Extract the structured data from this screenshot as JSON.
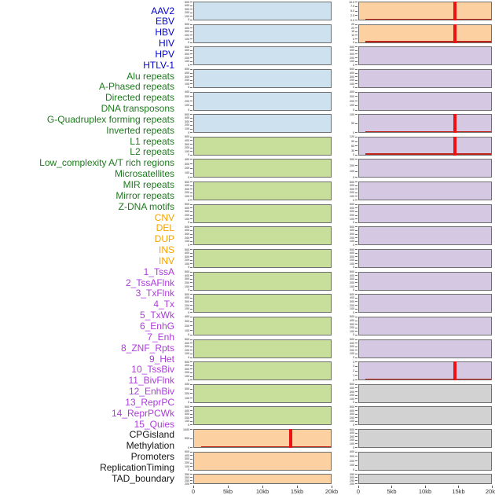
{
  "palette": {
    "label_colors": {
      "virus": "#0000cd",
      "repeat": "#1e7a1e",
      "sv": "#f5a200",
      "chromatin": "#ab3bd9",
      "other": "#141414"
    },
    "fill_colors": {
      "blue": "#cde2ee",
      "green": "#c7df9b",
      "orange": "#fdd0a2",
      "purple": "#d5c8e2",
      "gray": "#d2d2d2"
    },
    "panel_border": "#6e6e6e",
    "marker_red": "#ee1111",
    "baseline_red": "#c0251c",
    "axis_text": "#333333"
  },
  "track_labels": [
    {
      "text": "AAV2",
      "group": "virus"
    },
    {
      "text": "EBV",
      "group": "virus"
    },
    {
      "text": "HBV",
      "group": "virus"
    },
    {
      "text": "HIV",
      "group": "virus"
    },
    {
      "text": "HPV",
      "group": "virus"
    },
    {
      "text": "HTLV-1",
      "group": "virus"
    },
    {
      "text": "Alu repeats",
      "group": "repeat"
    },
    {
      "text": "A-Phased repeats",
      "group": "repeat"
    },
    {
      "text": "Directed repeats",
      "group": "repeat"
    },
    {
      "text": "DNA transposons",
      "group": "repeat"
    },
    {
      "text": "G-Quadruplex forming repeats",
      "group": "repeat"
    },
    {
      "text": "Inverted repeats",
      "group": "repeat"
    },
    {
      "text": "L1 repeats",
      "group": "repeat"
    },
    {
      "text": "L2 repeats",
      "group": "repeat"
    },
    {
      "text": "Low_complexity A/T rich regions",
      "group": "repeat"
    },
    {
      "text": "Microsatellites",
      "group": "repeat"
    },
    {
      "text": "MIR repeats",
      "group": "repeat"
    },
    {
      "text": "Mirror repeats",
      "group": "repeat"
    },
    {
      "text": "Z-DNA motifs",
      "group": "repeat"
    },
    {
      "text": "CNV",
      "group": "sv"
    },
    {
      "text": "DEL",
      "group": "sv"
    },
    {
      "text": "DUP",
      "group": "sv"
    },
    {
      "text": "INS",
      "group": "sv"
    },
    {
      "text": "INV",
      "group": "sv"
    },
    {
      "text": "1_TssA",
      "group": "chromatin"
    },
    {
      "text": "2_TssAFlnk",
      "group": "chromatin"
    },
    {
      "text": "3_TxFlnk",
      "group": "chromatin"
    },
    {
      "text": "4_Tx",
      "group": "chromatin"
    },
    {
      "text": "5_TxWk",
      "group": "chromatin"
    },
    {
      "text": "6_EnhG",
      "group": "chromatin"
    },
    {
      "text": "7_Enh",
      "group": "chromatin"
    },
    {
      "text": "8_ZNF_Rpts",
      "group": "chromatin"
    },
    {
      "text": "9_Het",
      "group": "chromatin"
    },
    {
      "text": "10_TssBiv",
      "group": "chromatin"
    },
    {
      "text": "11_BivFlnk",
      "group": "chromatin"
    },
    {
      "text": "12_EnhBiv",
      "group": "chromatin"
    },
    {
      "text": "13_ReprPC",
      "group": "chromatin"
    },
    {
      "text": "14_ReprPCWk",
      "group": "chromatin"
    },
    {
      "text": "15_Quies",
      "group": "chromatin"
    },
    {
      "text": "CPGisland",
      "group": "other"
    },
    {
      "text": "Methylation",
      "group": "other"
    },
    {
      "text": "Promoters",
      "group": "other"
    },
    {
      "text": "ReplicationTiming",
      "group": "other"
    },
    {
      "text": "TAD_boundary",
      "group": "other"
    }
  ],
  "chart_data": {
    "type": "area",
    "title": "",
    "xlabel": "",
    "x_axis": {
      "ticks": [
        "0",
        "5kb",
        "10kb",
        "15kb",
        "20kb"
      ],
      "range_kb": [
        0,
        20
      ]
    },
    "description": "44 genomic feature tracks in two columns of 22 flat filled mini-panels; red vertical markers at ~14.5kb on highlighted tracks",
    "columns": [
      {
        "name": "left",
        "panels": [
          {
            "track": "AAV2",
            "fill": "blue",
            "yticks": [
              "500",
              "400",
              "300",
              "200",
              "100",
              "0"
            ],
            "marker_frac": null,
            "baseline": false
          },
          {
            "track": "EBV",
            "fill": "blue",
            "yticks": [
              "500",
              "400",
              "300",
              "200",
              "100",
              "0"
            ],
            "marker_frac": null,
            "baseline": false
          },
          {
            "track": "HBV",
            "fill": "blue",
            "yticks": [
              "500",
              "400",
              "300",
              "200",
              "100",
              "0"
            ],
            "marker_frac": null,
            "baseline": false
          },
          {
            "track": "HIV",
            "fill": "blue",
            "yticks": [
              "500",
              "400",
              "300",
              "200",
              "100",
              "0"
            ],
            "marker_frac": null,
            "baseline": false
          },
          {
            "track": "HPV",
            "fill": "blue",
            "yticks": [
              "400",
              "300",
              "200",
              "100",
              "0"
            ],
            "marker_frac": null,
            "baseline": false
          },
          {
            "track": "HTLV-1",
            "fill": "blue",
            "yticks": [
              "500",
              "400",
              "300",
              "200",
              "100",
              "0"
            ],
            "marker_frac": null,
            "baseline": false
          },
          {
            "track": "Alu repeats",
            "fill": "green",
            "yticks": [
              "500",
              "400",
              "300",
              "200",
              "100",
              "0"
            ],
            "marker_frac": null,
            "baseline": false
          },
          {
            "track": "A-Phased repeats",
            "fill": "green",
            "yticks": [
              "400",
              "300",
              "200",
              "100",
              "0"
            ],
            "marker_frac": null,
            "baseline": false
          },
          {
            "track": "Directed repeats",
            "fill": "green",
            "yticks": [
              "500",
              "400",
              "300",
              "200",
              "100",
              "0"
            ],
            "marker_frac": null,
            "baseline": false
          },
          {
            "track": "DNA transposons",
            "fill": "green",
            "yticks": [
              "500",
              "400",
              "300",
              "200",
              "100",
              "0"
            ],
            "marker_frac": null,
            "baseline": false
          },
          {
            "track": "G-Quadruplex forming repeats",
            "fill": "green",
            "yticks": [
              "500",
              "400",
              "300",
              "200",
              "100",
              "0"
            ],
            "marker_frac": null,
            "baseline": false
          },
          {
            "track": "Inverted repeats",
            "fill": "green",
            "yticks": [
              "500",
              "400",
              "300",
              "200",
              "100",
              "0"
            ],
            "marker_frac": null,
            "baseline": false
          },
          {
            "track": "L1 repeats",
            "fill": "green",
            "yticks": [
              "500",
              "400",
              "300",
              "200",
              "100",
              "0"
            ],
            "marker_frac": null,
            "baseline": false
          },
          {
            "track": "L2 repeats",
            "fill": "green",
            "yticks": [
              "500",
              "400",
              "300",
              "200",
              "100",
              "0"
            ],
            "marker_frac": null,
            "baseline": false
          },
          {
            "track": "Low_complexity A/T rich regions",
            "fill": "green",
            "yticks": [
              "400",
              "300",
              "200",
              "100",
              "0"
            ],
            "marker_frac": null,
            "baseline": false
          },
          {
            "track": "Microsatellites",
            "fill": "green",
            "yticks": [
              "500",
              "400",
              "300",
              "200",
              "100",
              "0"
            ],
            "marker_frac": null,
            "baseline": false
          },
          {
            "track": "MIR repeats",
            "fill": "green",
            "yticks": [
              "500",
              "400",
              "300",
              "200",
              "100",
              "0"
            ],
            "marker_frac": null,
            "baseline": false
          },
          {
            "track": "Mirror repeats",
            "fill": "green",
            "yticks": [
              "400",
              "300",
              "200",
              "100",
              "0"
            ],
            "marker_frac": null,
            "baseline": false
          },
          {
            "track": "Z-DNA motifs",
            "fill": "green",
            "yticks": [
              "500",
              "400",
              "300",
              "200",
              "100",
              "0"
            ],
            "marker_frac": null,
            "baseline": false
          },
          {
            "track": "CNV",
            "fill": "orange",
            "yticks": [
              "1000",
              "500",
              "0"
            ],
            "marker_frac": 0.705,
            "baseline": true
          },
          {
            "track": "DEL",
            "fill": "orange",
            "yticks": [
              "500",
              "400",
              "300",
              "200",
              "100",
              "0"
            ],
            "marker_frac": null,
            "baseline": false
          },
          {
            "track": "DUP",
            "fill": "orange",
            "yticks": [
              "350",
              "300",
              "250",
              "200",
              "150",
              "100",
              "50",
              "0"
            ],
            "marker_frac": null,
            "baseline": false
          }
        ]
      },
      {
        "name": "right",
        "panels": [
          {
            "track": "INS",
            "fill": "orange",
            "yticks": [
              "10.0",
              "7.5",
              "5.0",
              "2.5",
              "0.0"
            ],
            "marker_frac": 0.725,
            "baseline": true
          },
          {
            "track": "INV",
            "fill": "orange",
            "yticks": [
              "25",
              "20",
              "15",
              "10",
              "5",
              "0"
            ],
            "marker_frac": 0.725,
            "baseline": true
          },
          {
            "track": "1_TssA",
            "fill": "purple",
            "yticks": [
              "500",
              "400",
              "300",
              "200",
              "100",
              "0"
            ],
            "marker_frac": null,
            "baseline": false
          },
          {
            "track": "2_TssAFlnk",
            "fill": "purple",
            "yticks": [
              "500",
              "400",
              "300",
              "200",
              "100",
              "0"
            ],
            "marker_frac": null,
            "baseline": false
          },
          {
            "track": "3_TxFlnk",
            "fill": "purple",
            "yticks": [
              "400",
              "300",
              "200",
              "100",
              "0"
            ],
            "marker_frac": null,
            "baseline": false
          },
          {
            "track": "4_Tx",
            "fill": "purple",
            "yticks": [
              "100",
              "50",
              "0"
            ],
            "marker_frac": 0.725,
            "baseline": true
          },
          {
            "track": "5_TxWk",
            "fill": "purple",
            "yticks": [
              "120",
              "90",
              "60",
              "30",
              "0"
            ],
            "marker_frac": 0.725,
            "baseline": true
          },
          {
            "track": "6_EnhG",
            "fill": "purple",
            "yticks": [
              "300",
              "200",
              "100",
              "0"
            ],
            "marker_frac": null,
            "baseline": false
          },
          {
            "track": "7_Enh",
            "fill": "purple",
            "yticks": [
              "500",
              "400",
              "300",
              "200",
              "100",
              "0"
            ],
            "marker_frac": null,
            "baseline": false
          },
          {
            "track": "8_ZNF_Rpts",
            "fill": "purple",
            "yticks": [
              "500",
              "400",
              "300",
              "200",
              "100",
              "0"
            ],
            "marker_frac": null,
            "baseline": false
          },
          {
            "track": "9_Het",
            "fill": "purple",
            "yticks": [
              "500",
              "400",
              "300",
              "200",
              "100",
              "0"
            ],
            "marker_frac": null,
            "baseline": false
          },
          {
            "track": "10_TssBiv",
            "fill": "purple",
            "yticks": [
              "500",
              "400",
              "300",
              "200",
              "100",
              "0"
            ],
            "marker_frac": null,
            "baseline": false
          },
          {
            "track": "11_BivFlnk",
            "fill": "purple",
            "yticks": [
              "500",
              "400",
              "300",
              "200",
              "100",
              "0"
            ],
            "marker_frac": null,
            "baseline": false
          },
          {
            "track": "12_EnhBiv",
            "fill": "purple",
            "yticks": [
              "500",
              "400",
              "300",
              "200",
              "100",
              "0"
            ],
            "marker_frac": null,
            "baseline": false
          },
          {
            "track": "13_ReprPC",
            "fill": "purple",
            "yticks": [
              "500",
              "400",
              "300",
              "200",
              "100",
              "0"
            ],
            "marker_frac": null,
            "baseline": false
          },
          {
            "track": "14_ReprPCWk",
            "fill": "purple",
            "yticks": [
              "500",
              "400",
              "300",
              "200",
              "100",
              "0"
            ],
            "marker_frac": null,
            "baseline": false
          },
          {
            "track": "15_Quies",
            "fill": "purple",
            "yticks": [
              "4",
              "3",
              "2",
              "1",
              "0"
            ],
            "marker_frac": 0.725,
            "baseline": true
          },
          {
            "track": "CPGisland",
            "fill": "gray",
            "yticks": [
              "500",
              "400",
              "300",
              "200",
              "100",
              "0"
            ],
            "marker_frac": null,
            "baseline": false
          },
          {
            "track": "Methylation",
            "fill": "gray",
            "yticks": [
              "500",
              "400",
              "300",
              "200",
              "100",
              "0"
            ],
            "marker_frac": null,
            "baseline": false
          },
          {
            "track": "Promoters",
            "fill": "gray",
            "yticks": [
              "500",
              "400",
              "300",
              "200",
              "100",
              "0"
            ],
            "marker_frac": null,
            "baseline": false
          },
          {
            "track": "ReplicationTiming",
            "fill": "gray",
            "yticks": [
              "400",
              "300",
              "200",
              "100",
              "0"
            ],
            "marker_frac": null,
            "baseline": false
          },
          {
            "track": "TAD_boundary",
            "fill": "gray",
            "yticks": [
              "350",
              "300",
              "250",
              "200",
              "150",
              "100",
              "50",
              "0"
            ],
            "marker_frac": null,
            "baseline": false
          }
        ]
      }
    ]
  }
}
